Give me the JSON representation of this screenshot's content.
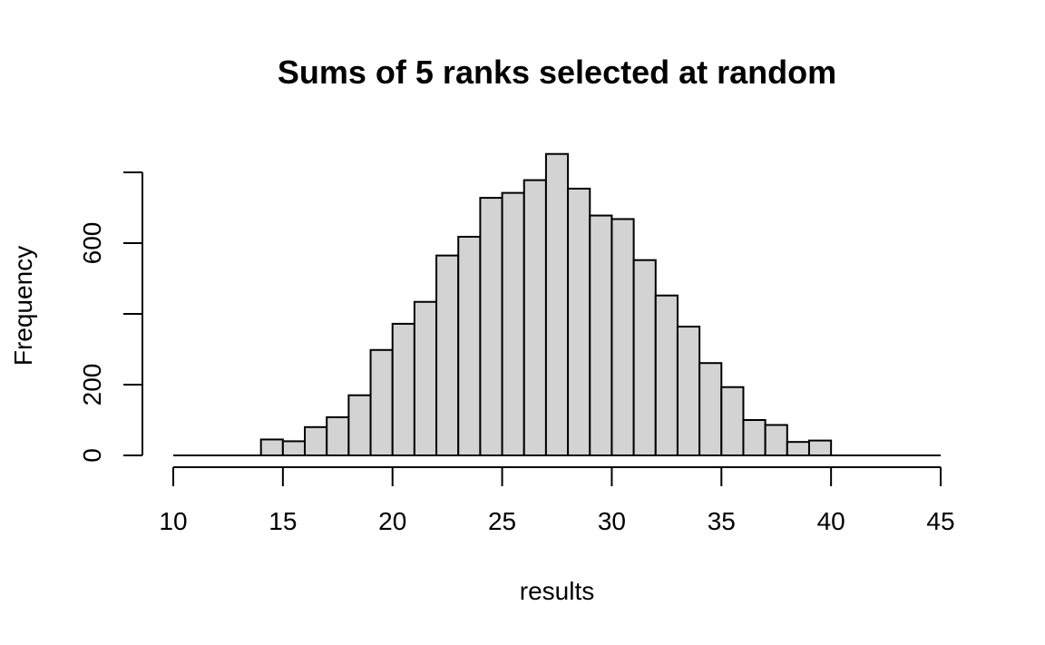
{
  "chart_data": {
    "type": "bar",
    "title": "Sums of 5 ranks selected at random",
    "xlabel": "results",
    "ylabel": "Frequency",
    "xlim": [
      10,
      45
    ],
    "ylim": [
      0,
      800
    ],
    "x_ticks": [
      10,
      15,
      20,
      25,
      30,
      35,
      40,
      45
    ],
    "y_ticks": [
      0,
      200,
      400,
      600,
      800
    ],
    "y_tick_labels": [
      "0",
      "200",
      "",
      "600",
      ""
    ],
    "bin_width": 1,
    "bins": [
      {
        "start": 10,
        "value": 0
      },
      {
        "start": 11,
        "value": 0
      },
      {
        "start": 12,
        "value": 0
      },
      {
        "start": 13,
        "value": 0
      },
      {
        "start": 14,
        "value": 45
      },
      {
        "start": 15,
        "value": 40
      },
      {
        "start": 16,
        "value": 80
      },
      {
        "start": 17,
        "value": 108
      },
      {
        "start": 18,
        "value": 170
      },
      {
        "start": 19,
        "value": 298
      },
      {
        "start": 20,
        "value": 372
      },
      {
        "start": 21,
        "value": 434
      },
      {
        "start": 22,
        "value": 565
      },
      {
        "start": 23,
        "value": 618
      },
      {
        "start": 24,
        "value": 728
      },
      {
        "start": 25,
        "value": 742
      },
      {
        "start": 26,
        "value": 778
      },
      {
        "start": 27,
        "value": 852
      },
      {
        "start": 28,
        "value": 754
      },
      {
        "start": 29,
        "value": 678
      },
      {
        "start": 30,
        "value": 668
      },
      {
        "start": 31,
        "value": 552
      },
      {
        "start": 32,
        "value": 452
      },
      {
        "start": 33,
        "value": 364
      },
      {
        "start": 34,
        "value": 261
      },
      {
        "start": 35,
        "value": 193
      },
      {
        "start": 36,
        "value": 100
      },
      {
        "start": 37,
        "value": 86
      },
      {
        "start": 38,
        "value": 38
      },
      {
        "start": 39,
        "value": 42
      },
      {
        "start": 40,
        "value": 0
      },
      {
        "start": 41,
        "value": 0
      },
      {
        "start": 42,
        "value": 0
      },
      {
        "start": 43,
        "value": 0
      },
      {
        "start": 44,
        "value": 0
      }
    ],
    "grid": false,
    "bar_fill": "#d3d3d3",
    "bar_stroke": "#000000"
  }
}
